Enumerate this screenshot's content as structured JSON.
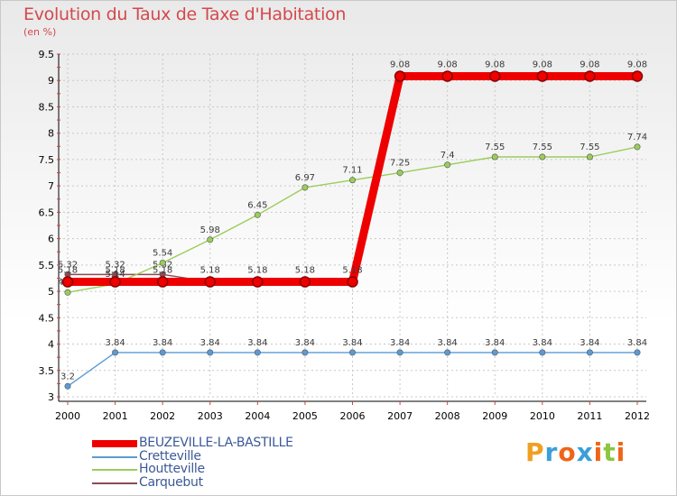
{
  "title": "Evolution du Taux de Taxe d'Habitation",
  "unit": "(en %)",
  "logo": {
    "letters": [
      "P",
      "r",
      "o",
      "x",
      "i",
      "t",
      "i"
    ],
    "colors": [
      "#f0a020",
      "#3a9fd8",
      "#f06418",
      "#3a9fd8",
      "#f06418",
      "#8cc63f",
      "#f06418"
    ]
  },
  "chart_data": {
    "type": "line",
    "title": "Evolution du Taux de Taxe d'Habitation",
    "ylabel": "(en %)",
    "x": [
      "2000",
      "2001",
      "2002",
      "2003",
      "2004",
      "2005",
      "2006",
      "2007",
      "2008",
      "2009",
      "2010",
      "2011",
      "2012"
    ],
    "ylim": [
      3,
      9.5
    ],
    "yticks": [
      "3",
      "3.5",
      "4",
      "4.5",
      "5",
      "5.5",
      "6",
      "6.5",
      "7",
      "7.5",
      "8",
      "8.5",
      "9",
      "9.5"
    ],
    "grid": true,
    "legend_position": "bottom-left",
    "series": [
      {
        "name": "Carquebut",
        "color": "#8b4a52",
        "labels_above": true,
        "values": [
          5.32,
          5.32,
          5.32,
          5.18,
          5.18,
          5.18,
          5.18,
          null,
          null,
          null,
          null,
          null,
          null
        ],
        "labels": [
          "5.32",
          "5.32",
          "5.32",
          "",
          "",
          "",
          "",
          "",
          "",
          "",
          "",
          "",
          ""
        ]
      },
      {
        "name": "Cretteville",
        "color": "#5b9bd5",
        "values": [
          3.2,
          3.84,
          3.84,
          3.84,
          3.84,
          3.84,
          3.84,
          3.84,
          3.84,
          3.84,
          3.84,
          3.84,
          3.84
        ],
        "labels": [
          "3.2",
          "3.84",
          "3.84",
          "3.84",
          "3.84",
          "3.84",
          "3.84",
          "3.84",
          "3.84",
          "3.84",
          "3.84",
          "3.84",
          "3.84"
        ]
      },
      {
        "name": "Houtteville",
        "color": "#9acd5a",
        "values": [
          4.98,
          5.14,
          5.54,
          5.98,
          6.45,
          6.97,
          7.11,
          7.25,
          7.4,
          7.55,
          7.55,
          7.55,
          7.74
        ],
        "labels": [
          "4.98",
          "5.14",
          "5.54",
          "5.98",
          "6.45",
          "6.97",
          "7.11",
          "7.25",
          "7.4",
          "7.55",
          "7.55",
          "7.55",
          "7.74"
        ]
      },
      {
        "name": "BEUZEVILLE-LA-BASTILLE",
        "color": "#ee0000",
        "bold": true,
        "values": [
          5.18,
          5.18,
          5.18,
          5.18,
          5.18,
          5.18,
          5.18,
          9.08,
          9.08,
          9.08,
          9.08,
          9.08,
          9.08
        ],
        "labels": [
          "5.18",
          "5.18",
          "5.18",
          "5.18",
          "5.18",
          "5.18",
          "5.18",
          "9.08",
          "9.08",
          "9.08",
          "9.08",
          "9.08",
          "9.08"
        ]
      }
    ],
    "legend": [
      "BEUZEVILLE-LA-BASTILLE",
      "Cretteville",
      "Houtteville",
      "Carquebut"
    ]
  }
}
